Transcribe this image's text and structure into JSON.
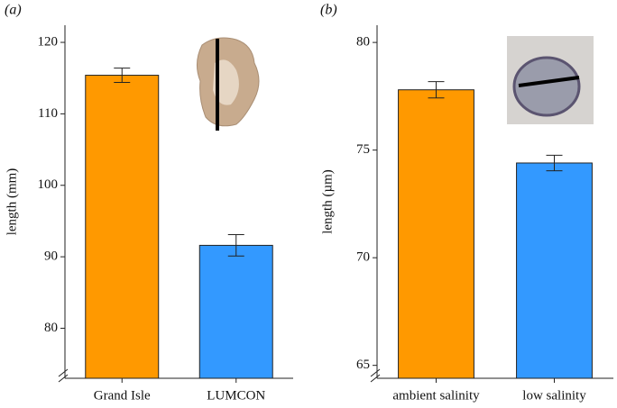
{
  "chart_data": [
    {
      "type": "bar",
      "panel_label": "(a)",
      "y_label": "length (mm)",
      "categories": [
        "Grand Isle",
        "LUMCON"
      ],
      "values": [
        115.4,
        91.6
      ],
      "errors": [
        1,
        1.5
      ],
      "colors": [
        "#ff9900",
        "#3399ff"
      ],
      "ylim": [
        73,
        122.4
      ],
      "yticks": [
        80,
        90,
        100,
        110,
        120
      ],
      "axis_break": true
    },
    {
      "type": "bar",
      "panel_label": "(b)",
      "y_label": "length (µm)",
      "categories": [
        "ambient salinity",
        "low salinity"
      ],
      "values": [
        77.8,
        74.4
      ],
      "errors": [
        0.38,
        0.36
      ],
      "colors": [
        "#ff9900",
        "#3399ff"
      ],
      "ylim": [
        64.4,
        80.8
      ],
      "yticks": [
        65,
        70,
        75,
        80
      ],
      "axis_break": true
    }
  ]
}
